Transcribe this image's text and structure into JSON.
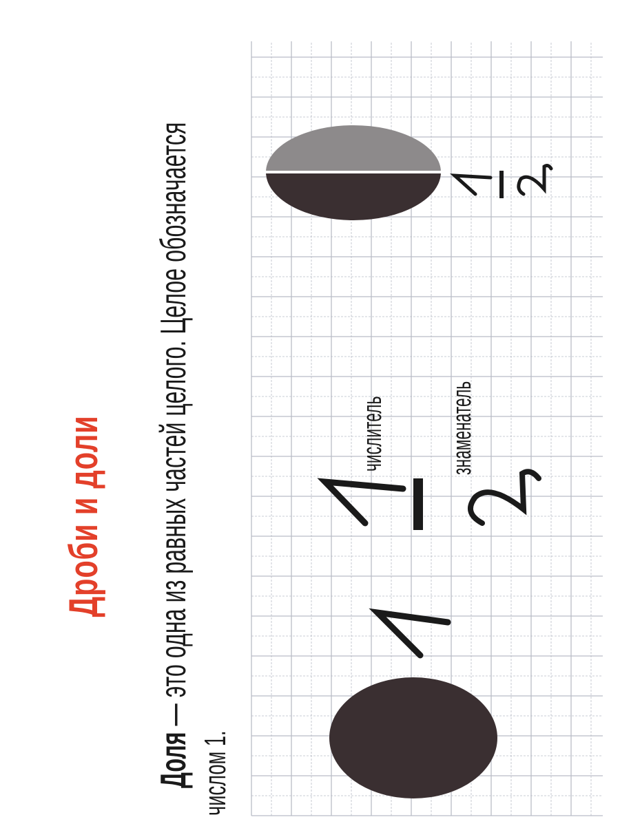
{
  "title": "Дроби и доли",
  "definition": {
    "term": "Доля",
    "dash": " — ",
    "text": "это одна из равных частей целого. Целое обозначается",
    "continuation": "числом 1."
  },
  "whole_example": {
    "value": "1"
  },
  "fraction_example": {
    "numerator": "1",
    "denominator": "2",
    "numerator_label": "числитель",
    "denominator_label": "знаменатель"
  },
  "half_example": {
    "numerator": "1",
    "denominator": "2",
    "shaded_fraction": 0.5
  },
  "colors": {
    "title": "#e3402a",
    "dark_fill": "#3a2f31",
    "light_fill": "#8d8a8b",
    "grid": "#b9bcc6"
  }
}
